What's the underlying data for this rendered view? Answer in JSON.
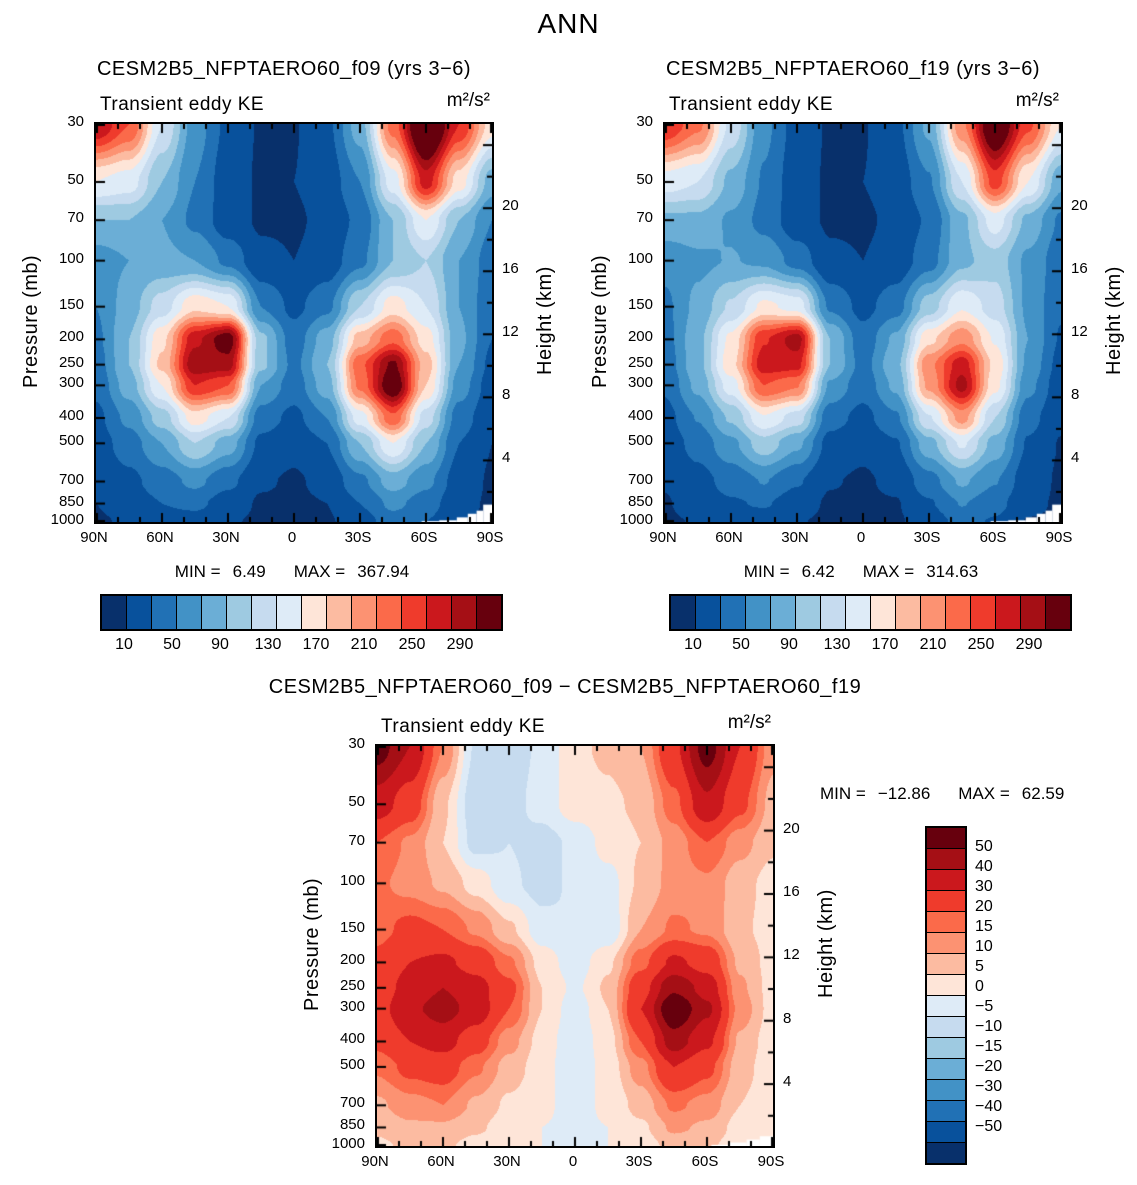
{
  "page_title": "ANN",
  "chart_data": [
    {
      "type": "heatmap",
      "title": "CESM2B5_NFPTAERO60_f09 (yrs 3−6)",
      "field_label": "Transient eddy KE",
      "units": "m²/s²",
      "ylabel_left": "Pressure (mb)",
      "ylabel_right": "Height (km)",
      "x_ticks": [
        "90N",
        "60N",
        "30N",
        "0",
        "30S",
        "60S",
        "90S"
      ],
      "y_ticks_pressure": [
        30,
        50,
        70,
        100,
        150,
        200,
        250,
        300,
        400,
        500,
        700,
        850,
        1000
      ],
      "y_ticks_height_km": [
        4,
        8,
        12,
        16,
        20
      ],
      "stats": {
        "min_label": "MIN =",
        "min": "6.49",
        "max_label": "MAX =",
        "max": "367.94"
      },
      "contour_levels": [
        10,
        30,
        50,
        70,
        90,
        110,
        130,
        150,
        170,
        190,
        210,
        230,
        250,
        270,
        290
      ],
      "colorbar_labels": [
        "10",
        "50",
        "90",
        "130",
        "170",
        "210",
        "250",
        "290"
      ],
      "colors": [
        "#08306b",
        "#08519c",
        "#2171b5",
        "#4292c6",
        "#6baed6",
        "#9ecae1",
        "#c6dbef",
        "#deebf7",
        "#fee5d8",
        "#fcbba1",
        "#fc9272",
        "#fb6a4a",
        "#ef3b2c",
        "#cb181d",
        "#a50f15",
        "#67000d"
      ],
      "grid": {
        "lats": [
          90,
          75,
          60,
          45,
          30,
          15,
          0,
          -15,
          -30,
          -45,
          -60,
          -75,
          -90
        ],
        "levels_mb": [
          30,
          50,
          70,
          100,
          150,
          200,
          250,
          300,
          400,
          500,
          700,
          850,
          1000
        ],
        "values": [
          [
            270,
            230,
            130,
            60,
            25,
            8,
            9,
            25,
            80,
            220,
            355,
            250,
            160
          ],
          [
            150,
            140,
            90,
            50,
            18,
            8,
            10,
            18,
            50,
            140,
            260,
            160,
            80
          ],
          [
            90,
            90,
            70,
            45,
            18,
            8,
            8,
            14,
            35,
            90,
            150,
            90,
            50
          ],
          [
            60,
            70,
            75,
            70,
            45,
            14,
            10,
            18,
            45,
            90,
            110,
            70,
            40
          ],
          [
            50,
            80,
            120,
            165,
            150,
            50,
            25,
            45,
            110,
            160,
            130,
            70,
            35
          ],
          [
            45,
            90,
            165,
            265,
            305,
            95,
            40,
            80,
            180,
            225,
            160,
            75,
            30
          ],
          [
            40,
            90,
            175,
            285,
            280,
            95,
            45,
            90,
            225,
            295,
            180,
            70,
            25
          ],
          [
            35,
            80,
            150,
            250,
            230,
            70,
            40,
            80,
            215,
            315,
            170,
            60,
            20
          ],
          [
            25,
            55,
            100,
            160,
            130,
            40,
            25,
            50,
            140,
            225,
            120,
            40,
            15
          ],
          [
            20,
            40,
            70,
            110,
            80,
            25,
            15,
            30,
            90,
            150,
            90,
            30,
            10
          ],
          [
            12,
            25,
            40,
            55,
            35,
            12,
            8,
            15,
            45,
            80,
            55,
            20,
            8
          ],
          [
            10,
            18,
            30,
            35,
            20,
            8,
            7,
            10,
            30,
            55,
            40,
            15,
            8
          ],
          [
            8,
            12,
            20,
            20,
            12,
            7,
            7,
            8,
            20,
            40,
            30,
            10,
            8
          ]
        ]
      },
      "terrain_steps": [
        [
          -58,
          -66,
          993
        ],
        [
          -66,
          -74,
          985
        ],
        [
          -74,
          -79,
          960
        ],
        [
          -79,
          -83,
          930
        ],
        [
          -83,
          -86,
          905
        ],
        [
          -86,
          -90,
          858
        ]
      ]
    },
    {
      "type": "heatmap",
      "title": "CESM2B5_NFPTAERO60_f19 (yrs 3−6)",
      "field_label": "Transient eddy KE",
      "units": "m²/s²",
      "ylabel_left": "Pressure (mb)",
      "ylabel_right": "Height (km)",
      "x_ticks": [
        "90N",
        "60N",
        "30N",
        "0",
        "30S",
        "60S",
        "90S"
      ],
      "y_ticks_pressure": [
        30,
        50,
        70,
        100,
        150,
        200,
        250,
        300,
        400,
        500,
        700,
        850,
        1000
      ],
      "y_ticks_height_km": [
        4,
        8,
        12,
        16,
        20
      ],
      "stats": {
        "min_label": "MIN =",
        "min": "6.42",
        "max_label": "MAX =",
        "max": "314.63"
      },
      "contour_levels": [
        10,
        30,
        50,
        70,
        90,
        110,
        130,
        150,
        170,
        190,
        210,
        230,
        250,
        270,
        290
      ],
      "colorbar_labels": [
        "10",
        "50",
        "90",
        "130",
        "170",
        "210",
        "250",
        "290"
      ],
      "colors": [
        "#08306b",
        "#08519c",
        "#2171b5",
        "#4292c6",
        "#6baed6",
        "#9ecae1",
        "#c6dbef",
        "#deebf7",
        "#fee5d8",
        "#fcbba1",
        "#fc9272",
        "#fb6a4a",
        "#ef3b2c",
        "#cb181d",
        "#a50f15",
        "#67000d"
      ],
      "grid": {
        "lats": [
          90,
          75,
          60,
          45,
          30,
          15,
          0,
          -15,
          -30,
          -45,
          -60,
          -75,
          -90
        ],
        "levels_mb": [
          30,
          50,
          70,
          100,
          150,
          200,
          250,
          300,
          400,
          500,
          700,
          850,
          1000
        ],
        "values": [
          [
            250,
            215,
            125,
            55,
            22,
            8,
            9,
            24,
            75,
            205,
            330,
            235,
            150
          ],
          [
            140,
            130,
            85,
            48,
            17,
            8,
            10,
            17,
            48,
            130,
            240,
            150,
            75
          ],
          [
            85,
            85,
            67,
            43,
            17,
            8,
            8,
            13,
            33,
            85,
            140,
            85,
            47
          ],
          [
            56,
            66,
            71,
            66,
            42,
            13,
            10,
            17,
            42,
            85,
            102,
            66,
            38
          ],
          [
            46,
            75,
            113,
            155,
            142,
            47,
            24,
            42,
            100,
            148,
            120,
            66,
            33
          ],
          [
            42,
            84,
            155,
            248,
            280,
            90,
            38,
            74,
            165,
            205,
            148,
            70,
            28
          ],
          [
            38,
            84,
            163,
            262,
            258,
            90,
            43,
            84,
            205,
            262,
            165,
            65,
            23
          ],
          [
            33,
            75,
            140,
            230,
            212,
            66,
            38,
            74,
            195,
            278,
            156,
            56,
            18
          ],
          [
            23,
            51,
            93,
            148,
            120,
            38,
            24,
            47,
            128,
            198,
            110,
            37,
            14
          ],
          [
            18,
            37,
            65,
            102,
            74,
            23,
            14,
            28,
            83,
            133,
            83,
            28,
            9
          ],
          [
            11,
            23,
            37,
            51,
            32,
            11,
            8,
            14,
            42,
            73,
            51,
            18,
            8
          ],
          [
            9,
            17,
            28,
            32,
            18,
            8,
            7,
            9,
            28,
            51,
            37,
            14,
            8
          ],
          [
            8,
            11,
            18,
            18,
            11,
            7,
            7,
            8,
            18,
            37,
            28,
            9,
            8
          ]
        ]
      },
      "terrain_steps": [
        [
          -58,
          -66,
          993
        ],
        [
          -66,
          -74,
          985
        ],
        [
          -74,
          -79,
          960
        ],
        [
          -79,
          -83,
          930
        ],
        [
          -83,
          -86,
          905
        ],
        [
          -86,
          -90,
          858
        ]
      ]
    },
    {
      "type": "heatmap",
      "title": "CESM2B5_NFPTAERO60_f09 − CESM2B5_NFPTAERO60_f19",
      "field_label": "Transient eddy KE",
      "units": "m²/s²",
      "ylabel_left": "Pressure (mb)",
      "ylabel_right": "Height (km)",
      "x_ticks": [
        "90N",
        "60N",
        "30N",
        "0",
        "30S",
        "60S",
        "90S"
      ],
      "y_ticks_pressure": [
        30,
        50,
        70,
        100,
        150,
        200,
        250,
        300,
        400,
        500,
        700,
        850,
        1000
      ],
      "y_ticks_height_km": [
        4,
        8,
        12,
        16,
        20
      ],
      "stats": {
        "min_label": "MIN =",
        "min": "−12.86",
        "max_label": "MAX =",
        "max": "62.59"
      },
      "contour_levels": [
        -50,
        -40,
        -30,
        -20,
        -15,
        -10,
        -5,
        0,
        5,
        10,
        15,
        20,
        30,
        40,
        50
      ],
      "colorbar_labels": [
        "50",
        "40",
        "30",
        "20",
        "15",
        "10",
        "5",
        "0",
        "−5",
        "−10",
        "−15",
        "−20",
        "−30",
        "−40",
        "−50"
      ],
      "colors": [
        "#08306b",
        "#08519c",
        "#2171b5",
        "#4292c6",
        "#6baed6",
        "#9ecae1",
        "#c6dbef",
        "#deebf7",
        "#fee5d8",
        "#fcbba1",
        "#fc9272",
        "#fb6a4a",
        "#ef3b2c",
        "#cb181d",
        "#a50f15",
        "#67000d"
      ],
      "grid": {
        "lats": [
          90,
          75,
          60,
          45,
          30,
          15,
          0,
          -15,
          -30,
          -45,
          -60,
          -75,
          -90
        ],
        "levels_mb": [
          30,
          50,
          70,
          100,
          150,
          200,
          250,
          300,
          400,
          500,
          700,
          850,
          1000
        ],
        "values": [
          [
            55,
            40,
            15,
            -6,
            -8,
            -4,
            4,
            6,
            10,
            28,
            55,
            30,
            12
          ],
          [
            35,
            25,
            6,
            -9,
            -7,
            -3,
            3,
            4,
            6,
            18,
            38,
            22,
            8
          ],
          [
            20,
            14,
            5,
            -7,
            -5,
            -7,
            -4,
            2,
            5,
            12,
            20,
            12,
            6
          ],
          [
            16,
            13,
            9,
            3,
            -4,
            -7,
            -4,
            -2,
            6,
            12,
            14,
            7,
            3
          ],
          [
            18,
            22,
            20,
            14,
            6,
            -3,
            -5,
            -4,
            10,
            16,
            14,
            6,
            3
          ],
          [
            22,
            30,
            32,
            26,
            16,
            3,
            -3,
            4,
            18,
            32,
            26,
            9,
            3
          ],
          [
            24,
            34,
            40,
            34,
            22,
            5,
            -1,
            6,
            26,
            48,
            36,
            11,
            3
          ],
          [
            26,
            38,
            44,
            36,
            20,
            5,
            -3,
            5,
            30,
            60,
            42,
            13,
            3
          ],
          [
            22,
            30,
            34,
            24,
            12,
            3,
            -4,
            3,
            20,
            45,
            32,
            9,
            2
          ],
          [
            16,
            22,
            24,
            16,
            8,
            2,
            -4,
            2,
            13,
            30,
            22,
            7,
            2
          ],
          [
            9,
            13,
            15,
            9,
            4,
            1,
            -2,
            1,
            7,
            16,
            13,
            5,
            2
          ],
          [
            6,
            9,
            9,
            6,
            2,
            0,
            -1,
            0,
            4,
            11,
            9,
            3,
            1
          ],
          [
            4,
            6,
            6,
            3,
            1,
            0,
            0,
            0,
            2,
            7,
            6,
            2,
            1
          ]
        ]
      },
      "terrain_steps": [
        [
          -62,
          -70,
          990
        ],
        [
          -70,
          -78,
          970
        ],
        [
          -78,
          -84,
          945
        ],
        [
          -84,
          -90,
          918
        ]
      ]
    }
  ]
}
